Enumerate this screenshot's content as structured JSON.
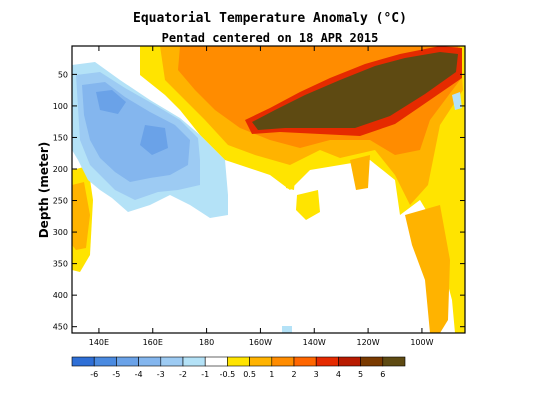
{
  "chart_data": {
    "type": "heatmap",
    "title": "Equatorial Temperature Anomaly (°C)",
    "subtitle": "Pentad centered on 18 APR 2015",
    "xlabel": "",
    "ylabel": "Depth (meter)",
    "x_range_deg_east": [
      130,
      276
    ],
    "y_range_m": [
      5,
      460
    ],
    "x_ticks": [
      {
        "lon": 140,
        "label": "140E"
      },
      {
        "lon": 160,
        "label": "160E"
      },
      {
        "lon": 180,
        "label": "180"
      },
      {
        "lon": 200,
        "label": "160W"
      },
      {
        "lon": 220,
        "label": "140W"
      },
      {
        "lon": 240,
        "label": "120W"
      },
      {
        "lon": 260,
        "label": "100W"
      }
    ],
    "y_ticks": [
      50,
      100,
      150,
      200,
      250,
      300,
      350,
      400,
      450
    ],
    "colorbar": {
      "boundaries": [
        "-6",
        "-5",
        "-4",
        "-3",
        "-2",
        "-1",
        "-0.5",
        "0.5",
        "1",
        "2",
        "3",
        "4",
        "5",
        "6"
      ],
      "colors": [
        "#2f6fd6",
        "#4a8ae0",
        "#6aa2e8",
        "#84b6ee",
        "#9dcbf3",
        "#b4e2f7",
        "#ffffff",
        "#ffe400",
        "#ffb300",
        "#ff8c00",
        "#ff6600",
        "#e52a00",
        "#b81a00",
        "#7a3a00",
        "#5e4a12"
      ]
    },
    "regions": [
      {
        "level": "1",
        "color": "#ffe400",
        "description": "broad warm layer 50-450 m across central/eastern Pacific"
      },
      {
        "level": "4",
        "color": "#e52a00",
        "description": "thermocline core 40-130 m, 150W-95W"
      },
      {
        "level": "5",
        "color": "#5e4a12",
        "description": "peak anomaly near 50-120 m, 140W-95W"
      },
      {
        "level": "-2",
        "color": "#84b6ee",
        "description": "cool anomaly 50-220 m, 130E-170E"
      }
    ]
  }
}
